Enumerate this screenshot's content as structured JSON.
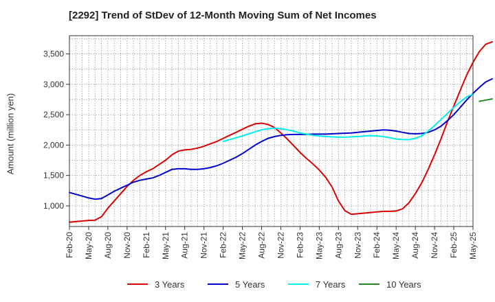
{
  "chart_data": {
    "type": "line",
    "title": "[2292]  Trend of StDev of 12-Month Moving Sum of Net Incomes",
    "xlabel": "",
    "ylabel": "Amount (million yen)",
    "ylim": [
      660,
      3800
    ],
    "yticks": [
      1000,
      1500,
      2000,
      2500,
      3000,
      3500
    ],
    "ytick_labels": [
      "1,000",
      "1,500",
      "2,000",
      "2,500",
      "3,000",
      "3,500"
    ],
    "x_labels": [
      "Feb-20",
      "May-20",
      "Aug-20",
      "Nov-20",
      "Feb-21",
      "May-21",
      "Aug-21",
      "Nov-21",
      "Feb-22",
      "May-22",
      "Aug-22",
      "Nov-22",
      "Feb-23",
      "May-23",
      "Aug-23",
      "Nov-23",
      "Feb-24",
      "May-24",
      "Aug-24",
      "Nov-24",
      "Feb-25",
      "May-25"
    ],
    "grid": true,
    "legend_position": "bottom",
    "series": [
      {
        "name": "3 Years",
        "color": "#dd0000",
        "values": [
          730,
          740,
          750,
          760,
          765,
          820,
          960,
          1080,
          1200,
          1320,
          1420,
          1500,
          1560,
          1610,
          1680,
          1750,
          1840,
          1900,
          1920,
          1930,
          1950,
          1980,
          2020,
          2060,
          2110,
          2160,
          2210,
          2260,
          2310,
          2350,
          2360,
          2340,
          2290,
          2200,
          2100,
          1990,
          1880,
          1780,
          1690,
          1590,
          1470,
          1310,
          1080,
          920,
          860,
          870,
          880,
          890,
          900,
          910,
          910,
          915,
          950,
          1050,
          1200,
          1380,
          1600,
          1840,
          2100,
          2380,
          2640,
          2900,
          3150,
          3360,
          3540,
          3660,
          3700
        ]
      },
      {
        "name": "5 Years",
        "color": "#0000cc",
        "values": [
          1220,
          1190,
          1160,
          1130,
          1110,
          1120,
          1180,
          1240,
          1290,
          1340,
          1390,
          1420,
          1440,
          1460,
          1500,
          1550,
          1600,
          1610,
          1610,
          1600,
          1600,
          1610,
          1630,
          1660,
          1700,
          1750,
          1800,
          1860,
          1930,
          2000,
          2060,
          2110,
          2140,
          2160,
          2170,
          2175,
          2175,
          2175,
          2180,
          2180,
          2180,
          2185,
          2190,
          2195,
          2200,
          2210,
          2220,
          2230,
          2240,
          2250,
          2245,
          2230,
          2210,
          2190,
          2185,
          2190,
          2210,
          2250,
          2310,
          2400,
          2500,
          2620,
          2740,
          2850,
          2950,
          3040,
          3090
        ]
      },
      {
        "name": "7 Years",
        "color": "#00eeee",
        "start_index": 24,
        "values": [
          2060,
          2090,
          2120,
          2150,
          2185,
          2220,
          2250,
          2270,
          2280,
          2270,
          2250,
          2230,
          2200,
          2180,
          2160,
          2150,
          2140,
          2135,
          2130,
          2130,
          2135,
          2140,
          2150,
          2155,
          2150,
          2140,
          2120,
          2100,
          2090,
          2090,
          2110,
          2150,
          2230,
          2320,
          2420,
          2520,
          2620,
          2710,
          2790,
          2840
        ]
      },
      {
        "name": "10 Years",
        "color": "#228b22",
        "start_index": 64,
        "values": [
          2720,
          2740,
          2760
        ]
      }
    ]
  }
}
